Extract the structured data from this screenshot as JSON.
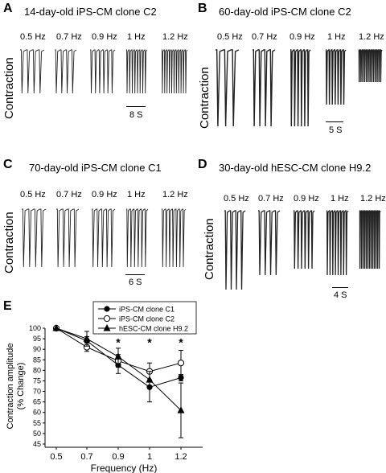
{
  "panels": [
    {
      "label": "A",
      "title": "14-day-old iPS-CM clone C2",
      "ylabel": "Contraction",
      "freqs": [
        "0.5 Hz",
        "0.7 Hz",
        "0.9 Hz",
        "1 Hz",
        "1.2 Hz"
      ],
      "scale": "8 S"
    },
    {
      "label": "B",
      "title": "60-day-old iPS-CM clone C2",
      "ylabel": "Contraction",
      "freqs": [
        "0.5 Hz",
        "0.7 Hz",
        "0.9 Hz",
        "1 Hz",
        "1.2 Hz"
      ],
      "scale": "5 S"
    },
    {
      "label": "C",
      "title": "70-day-old iPS-CM clone C1",
      "ylabel": "Contraction",
      "freqs": [
        "0.5 Hz",
        "0.7 Hz",
        "0.9 Hz",
        "1 Hz",
        "1.2 Hz"
      ],
      "scale": "6 S"
    },
    {
      "label": "D",
      "title": "30-day-old hESC-CM clone H9.2",
      "ylabel": "Contraction",
      "freqs": [
        "0.5 Hz",
        "0.7 Hz",
        "0.9 Hz",
        "1 Hz",
        "1.2 Hz"
      ],
      "scale": "4 S"
    }
  ],
  "chart_data": {
    "label": "E",
    "type": "line",
    "xlabel": "Frequency (Hz)",
    "ylabel": "Contraction amplitude (% Change)",
    "ylabel_lines": [
      "Contraction amplitude",
      "(% Change)"
    ],
    "x": [
      0.5,
      0.7,
      0.9,
      1,
      1.2
    ],
    "x_ticks": [
      "0.5",
      "0.7",
      "0.9",
      "1",
      "1.2"
    ],
    "ylim": [
      45,
      100
    ],
    "y_ticks": [
      45,
      50,
      55,
      60,
      65,
      70,
      75,
      80,
      85,
      90,
      95,
      100
    ],
    "series": [
      {
        "name": "iPS-CM clone C1",
        "marker": "filled-circle",
        "values": [
          100,
          94,
          82.5,
          72,
          76.5
        ],
        "err": [
          0,
          2,
          4,
          7,
          1.5
        ]
      },
      {
        "name": "iPS-CM clone C2",
        "marker": "open-circle",
        "values": [
          100,
          91,
          84.5,
          79.5,
          83.5
        ],
        "err": [
          0,
          2,
          3,
          4,
          6
        ]
      },
      {
        "name": "hESC-CM clone H9.2",
        "marker": "filled-triangle",
        "values": [
          100,
          95,
          86.5,
          75.5,
          61
        ],
        "err": [
          0,
          3.5,
          4,
          4,
          13
        ]
      }
    ],
    "significance": [
      {
        "x": 0.9,
        "mark": "*"
      },
      {
        "x": 1,
        "mark": "*"
      },
      {
        "x": 1.2,
        "mark": "*"
      }
    ],
    "legend_position": "top-right"
  }
}
